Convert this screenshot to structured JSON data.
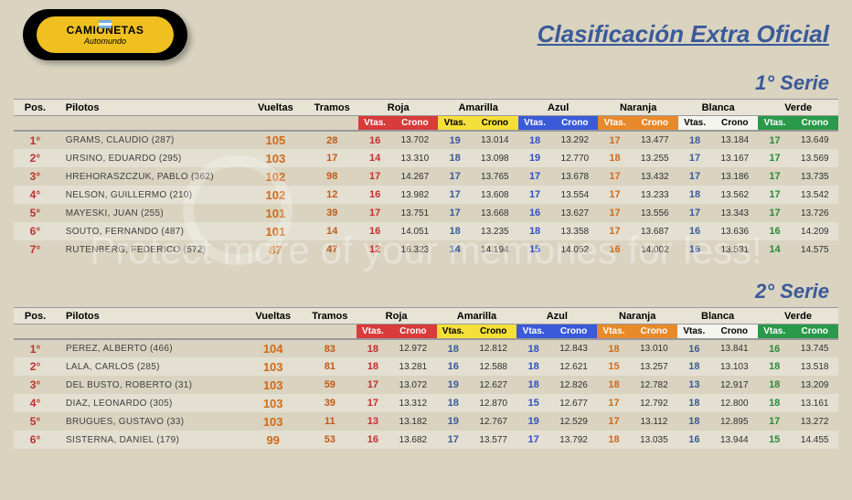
{
  "logo": {
    "line1": "CAMIONETAS",
    "line2": "Automundo"
  },
  "title": "Clasificación Extra Oficial",
  "serie_labels": [
    "1° Serie",
    "2° Serie"
  ],
  "headers": {
    "pos": "Pos.",
    "pilotos": "Pilotos",
    "vueltas": "Vueltas",
    "tramos": "Tramos",
    "lanes": [
      {
        "name": "Roja",
        "sub1": "Vtas.",
        "sub2": "Crono",
        "cls": "lane-roja"
      },
      {
        "name": "Amarilla",
        "sub1": "Vtas.",
        "sub2": "Crono",
        "cls": "lane-amarilla"
      },
      {
        "name": "Azul",
        "sub1": "Vtas.",
        "sub2": "Crono",
        "cls": "lane-azul"
      },
      {
        "name": "Naranja",
        "sub1": "Vtas.",
        "sub2": "Crono",
        "cls": "lane-naranja"
      },
      {
        "name": "Blanca",
        "sub1": "Vtas.",
        "sub2": "Crono",
        "cls": "lane-blanca"
      },
      {
        "name": "Verde",
        "sub1": "Vtas.",
        "sub2": "Crono",
        "cls": "lane-verde"
      }
    ]
  },
  "lane_col_classes": [
    "c-roja",
    "c-amarilla",
    "c-azul",
    "c-naranja",
    "c-blanca",
    "c-verde"
  ],
  "series": [
    {
      "rows": [
        {
          "pos": "1°",
          "pilot": "GRAMS, CLAUDIO (287)",
          "vuel": "105",
          "tram": "28",
          "lanes": [
            [
              "16",
              "13.702"
            ],
            [
              "19",
              "13.014"
            ],
            [
              "18",
              "13.292"
            ],
            [
              "17",
              "13.477"
            ],
            [
              "18",
              "13.184"
            ],
            [
              "17",
              "13.649"
            ]
          ]
        },
        {
          "pos": "2°",
          "pilot": "URSINO, EDUARDO (295)",
          "vuel": "103",
          "tram": "17",
          "lanes": [
            [
              "14",
              "13.310"
            ],
            [
              "18",
              "13.098"
            ],
            [
              "19",
              "12.770"
            ],
            [
              "18",
              "13.255"
            ],
            [
              "17",
              "13.167"
            ],
            [
              "17",
              "13.569"
            ]
          ]
        },
        {
          "pos": "3°",
          "pilot": "HREHORASZCZUK, PABLO (362)",
          "vuel": "102",
          "tram": "98",
          "lanes": [
            [
              "17",
              "14.267"
            ],
            [
              "17",
              "13.765"
            ],
            [
              "17",
              "13.678"
            ],
            [
              "17",
              "13.432"
            ],
            [
              "17",
              "13.186"
            ],
            [
              "17",
              "13.735"
            ]
          ]
        },
        {
          "pos": "4°",
          "pilot": "NELSON, GUILLERMO (210)",
          "vuel": "102",
          "tram": "12",
          "lanes": [
            [
              "16",
              "13.982"
            ],
            [
              "17",
              "13.608"
            ],
            [
              "17",
              "13.554"
            ],
            [
              "17",
              "13.233"
            ],
            [
              "18",
              "13.562"
            ],
            [
              "17",
              "13.542"
            ]
          ]
        },
        {
          "pos": "5°",
          "pilot": "MAYESKI, JUAN (255)",
          "vuel": "101",
          "tram": "39",
          "lanes": [
            [
              "17",
              "13.751"
            ],
            [
              "17",
              "13.668"
            ],
            [
              "16",
              "13.627"
            ],
            [
              "17",
              "13.556"
            ],
            [
              "17",
              "13.343"
            ],
            [
              "17",
              "13.726"
            ]
          ]
        },
        {
          "pos": "6°",
          "pilot": "SOUTO, FERNANDO (487)",
          "vuel": "101",
          "tram": "14",
          "lanes": [
            [
              "16",
              "14.051"
            ],
            [
              "18",
              "13.235"
            ],
            [
              "18",
              "13.358"
            ],
            [
              "17",
              "13.687"
            ],
            [
              "16",
              "13.636"
            ],
            [
              "16",
              "14.209"
            ]
          ]
        },
        {
          "pos": "7°",
          "pilot": "RUTENBERG, FEDERICO (572)",
          "vuel": "87",
          "tram": "47",
          "lanes": [
            [
              "12",
              "16.323"
            ],
            [
              "14",
              "14.194"
            ],
            [
              "15",
              "14.052"
            ],
            [
              "16",
              "14.002"
            ],
            [
              "16",
              "13.531"
            ],
            [
              "14",
              "14.575"
            ]
          ]
        }
      ]
    },
    {
      "rows": [
        {
          "pos": "1°",
          "pilot": "PEREZ, ALBERTO (466)",
          "vuel": "104",
          "tram": "83",
          "lanes": [
            [
              "18",
              "12.972"
            ],
            [
              "18",
              "12.812"
            ],
            [
              "18",
              "12.843"
            ],
            [
              "18",
              "13.010"
            ],
            [
              "16",
              "13.841"
            ],
            [
              "16",
              "13.745"
            ]
          ]
        },
        {
          "pos": "2°",
          "pilot": "LALA, CARLOS (285)",
          "vuel": "103",
          "tram": "81",
          "lanes": [
            [
              "18",
              "13.281"
            ],
            [
              "16",
              "12.588"
            ],
            [
              "18",
              "12.621"
            ],
            [
              "15",
              "13.257"
            ],
            [
              "18",
              "13.103"
            ],
            [
              "18",
              "13.518"
            ]
          ]
        },
        {
          "pos": "3°",
          "pilot": "DEL BUSTO, ROBERTO (31)",
          "vuel": "103",
          "tram": "59",
          "lanes": [
            [
              "17",
              "13.072"
            ],
            [
              "19",
              "12.627"
            ],
            [
              "18",
              "12.826"
            ],
            [
              "18",
              "12.782"
            ],
            [
              "13",
              "12.917"
            ],
            [
              "18",
              "13.209"
            ]
          ]
        },
        {
          "pos": "4°",
          "pilot": "DIAZ, LEONARDO (305)",
          "vuel": "103",
          "tram": "39",
          "lanes": [
            [
              "17",
              "13.312"
            ],
            [
              "18",
              "12.870"
            ],
            [
              "15",
              "12.677"
            ],
            [
              "17",
              "12.792"
            ],
            [
              "18",
              "12.800"
            ],
            [
              "18",
              "13.161"
            ]
          ]
        },
        {
          "pos": "5°",
          "pilot": "BRUGUES, GUSTAVO (33)",
          "vuel": "103",
          "tram": "11",
          "lanes": [
            [
              "13",
              "13.182"
            ],
            [
              "19",
              "12.767"
            ],
            [
              "19",
              "12.529"
            ],
            [
              "17",
              "13.112"
            ],
            [
              "18",
              "12.895"
            ],
            [
              "17",
              "13.272"
            ]
          ]
        },
        {
          "pos": "6°",
          "pilot": "SISTERNA, DANIEL (179)",
          "vuel": "99",
          "tram": "53",
          "lanes": [
            [
              "16",
              "13.682"
            ],
            [
              "17",
              "13.577"
            ],
            [
              "17",
              "13.792"
            ],
            [
              "18",
              "13.035"
            ],
            [
              "16",
              "13.944"
            ],
            [
              "15",
              "14.455"
            ]
          ]
        }
      ]
    }
  ],
  "watermark": "Protect more of your memories for less!"
}
